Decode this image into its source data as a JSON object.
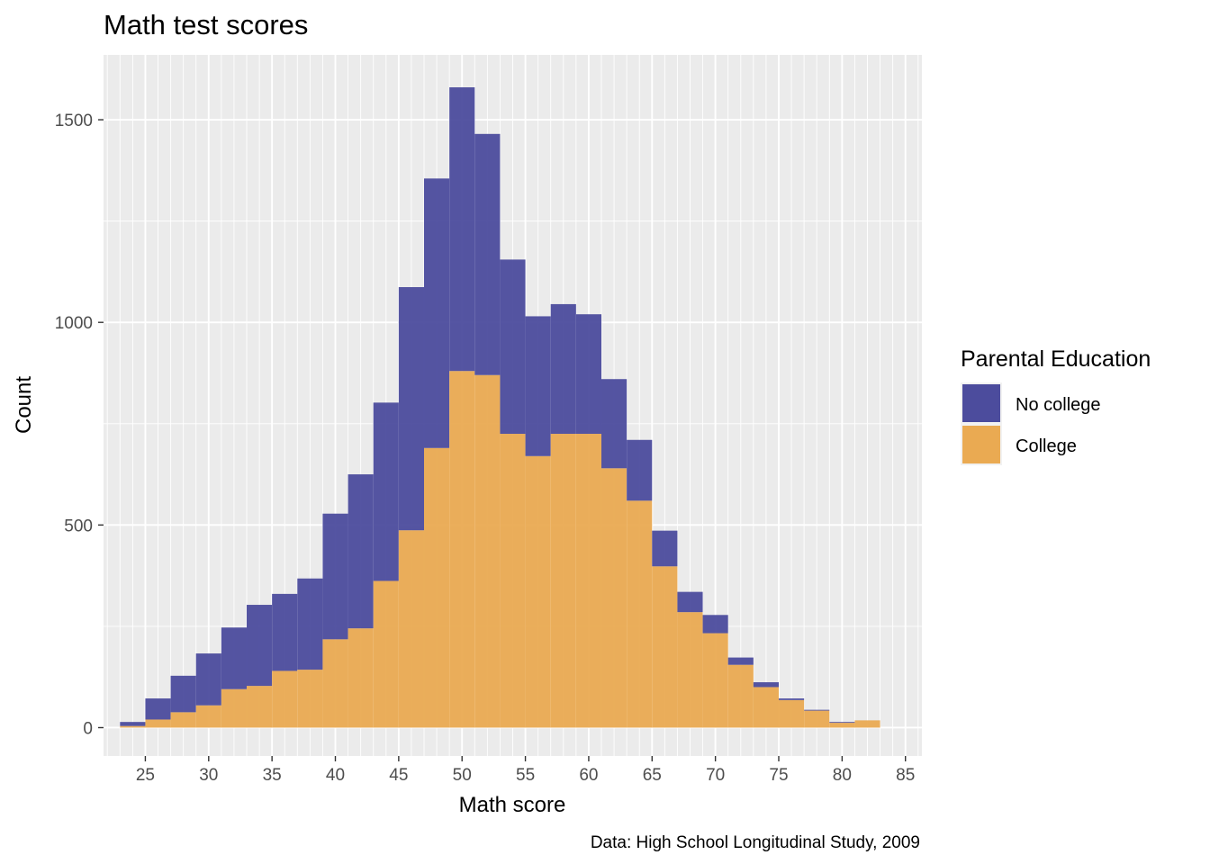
{
  "chart_data": {
    "type": "bar",
    "stacked": true,
    "title": "Math test scores",
    "xlabel": "Math score",
    "ylabel": "Count",
    "caption": "Data: High School Longitudinal Study, 2009",
    "xlim": [
      21.7,
      86.3
    ],
    "ylim": [
      -70,
      1660
    ],
    "x_ticks": [
      25,
      30,
      35,
      40,
      45,
      50,
      55,
      60,
      65,
      70,
      75,
      80,
      85
    ],
    "y_ticks": [
      0,
      500,
      1000,
      1500
    ],
    "grid": true,
    "bin_width": 2,
    "bin_starts": [
      23,
      25,
      27,
      29,
      31,
      33,
      35,
      37,
      39,
      41,
      43,
      45,
      47,
      49,
      51,
      53,
      55,
      57,
      59,
      61,
      63,
      65,
      67,
      69,
      71,
      73,
      75,
      77,
      79,
      81
    ],
    "legend": {
      "title": "Parental Education",
      "placement": "right"
    },
    "series": [
      {
        "name": "No college",
        "color": "#4C4C9D",
        "values": [
          10,
          52,
          90,
          128,
          152,
          200,
          190,
          225,
          310,
          380,
          440,
          600,
          665,
          700,
          595,
          430,
          345,
          320,
          295,
          220,
          150,
          88,
          50,
          45,
          18,
          12,
          4,
          2,
          2,
          0
        ]
      },
      {
        "name": "College",
        "color": "#EAAA52",
        "values": [
          4,
          20,
          38,
          55,
          95,
          103,
          140,
          143,
          218,
          245,
          362,
          487,
          690,
          880,
          870,
          725,
          670,
          725,
          725,
          640,
          560,
          398,
          285,
          233,
          155,
          100,
          68,
          42,
          12,
          18
        ]
      }
    ]
  }
}
